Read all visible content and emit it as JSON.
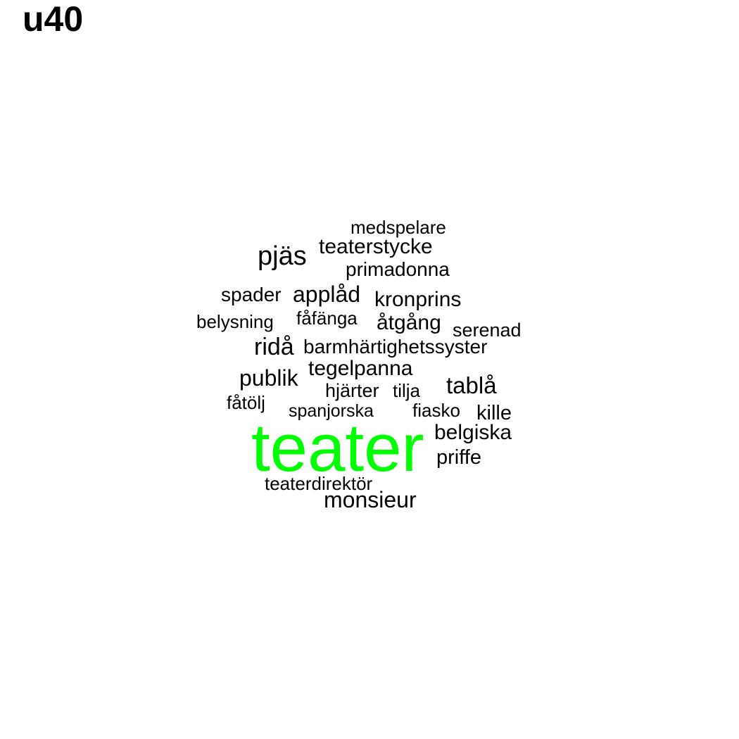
{
  "title": "u40",
  "highlight_color": "#00ff00",
  "text_color": "#000000",
  "words": [
    {
      "text": "medspelare"
    },
    {
      "text": "teaterstycke"
    },
    {
      "text": "pjäs"
    },
    {
      "text": "primadonna"
    },
    {
      "text": "spader"
    },
    {
      "text": "applåd"
    },
    {
      "text": "kronprins"
    },
    {
      "text": "belysning"
    },
    {
      "text": "fåfänga"
    },
    {
      "text": "åtgång"
    },
    {
      "text": "serenad"
    },
    {
      "text": "ridå"
    },
    {
      "text": "barmhärtighetssyster"
    },
    {
      "text": "tegelpanna"
    },
    {
      "text": "publik"
    },
    {
      "text": "tablå"
    },
    {
      "text": "hjärter"
    },
    {
      "text": "tilja"
    },
    {
      "text": "fåtölj"
    },
    {
      "text": "spanjorska"
    },
    {
      "text": "fiasko"
    },
    {
      "text": "kille"
    },
    {
      "text": "belgiska"
    },
    {
      "text": "teater"
    },
    {
      "text": "priffe"
    },
    {
      "text": "teaterdirektör"
    },
    {
      "text": "monsieur"
    }
  ]
}
